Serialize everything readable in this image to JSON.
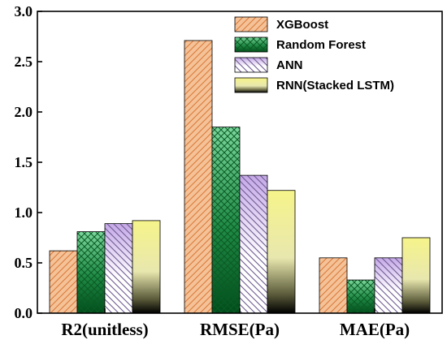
{
  "chart_data": {
    "type": "bar",
    "title": "",
    "xlabel": "",
    "ylabel": "",
    "categories": [
      "R2(unitless)",
      "RMSE(Pa)",
      "MAE(Pa)"
    ],
    "ylim": [
      0,
      3.0
    ],
    "yticks": [
      "0.0",
      "0.5",
      "1.0",
      "1.5",
      "2.0",
      "2.5",
      "3.0"
    ],
    "grid": false,
    "legend_position": "top-right",
    "series": [
      {
        "name": "XGBoost",
        "values": [
          0.62,
          2.71,
          0.55
        ],
        "color": "#f5c298",
        "hatch": "diagonal-left",
        "hatch_color": "#d97a3a"
      },
      {
        "name": "Random Forest",
        "values": [
          0.81,
          1.85,
          0.33
        ],
        "color": "#5ec98b",
        "hatch": "crosshatch",
        "hatch_color": "#0a5a24",
        "gradient": true
      },
      {
        "name": "ANN",
        "values": [
          0.89,
          1.37,
          0.55
        ],
        "color": "#c9aee6",
        "hatch": "diagonal-right",
        "hatch_color": "#6c5a8f",
        "gradient": true
      },
      {
        "name": "RNN(Stacked LSTM)",
        "values": [
          0.92,
          1.22,
          0.75
        ],
        "color": "#f2f07a",
        "hatch": "none",
        "gradient": true
      }
    ]
  }
}
